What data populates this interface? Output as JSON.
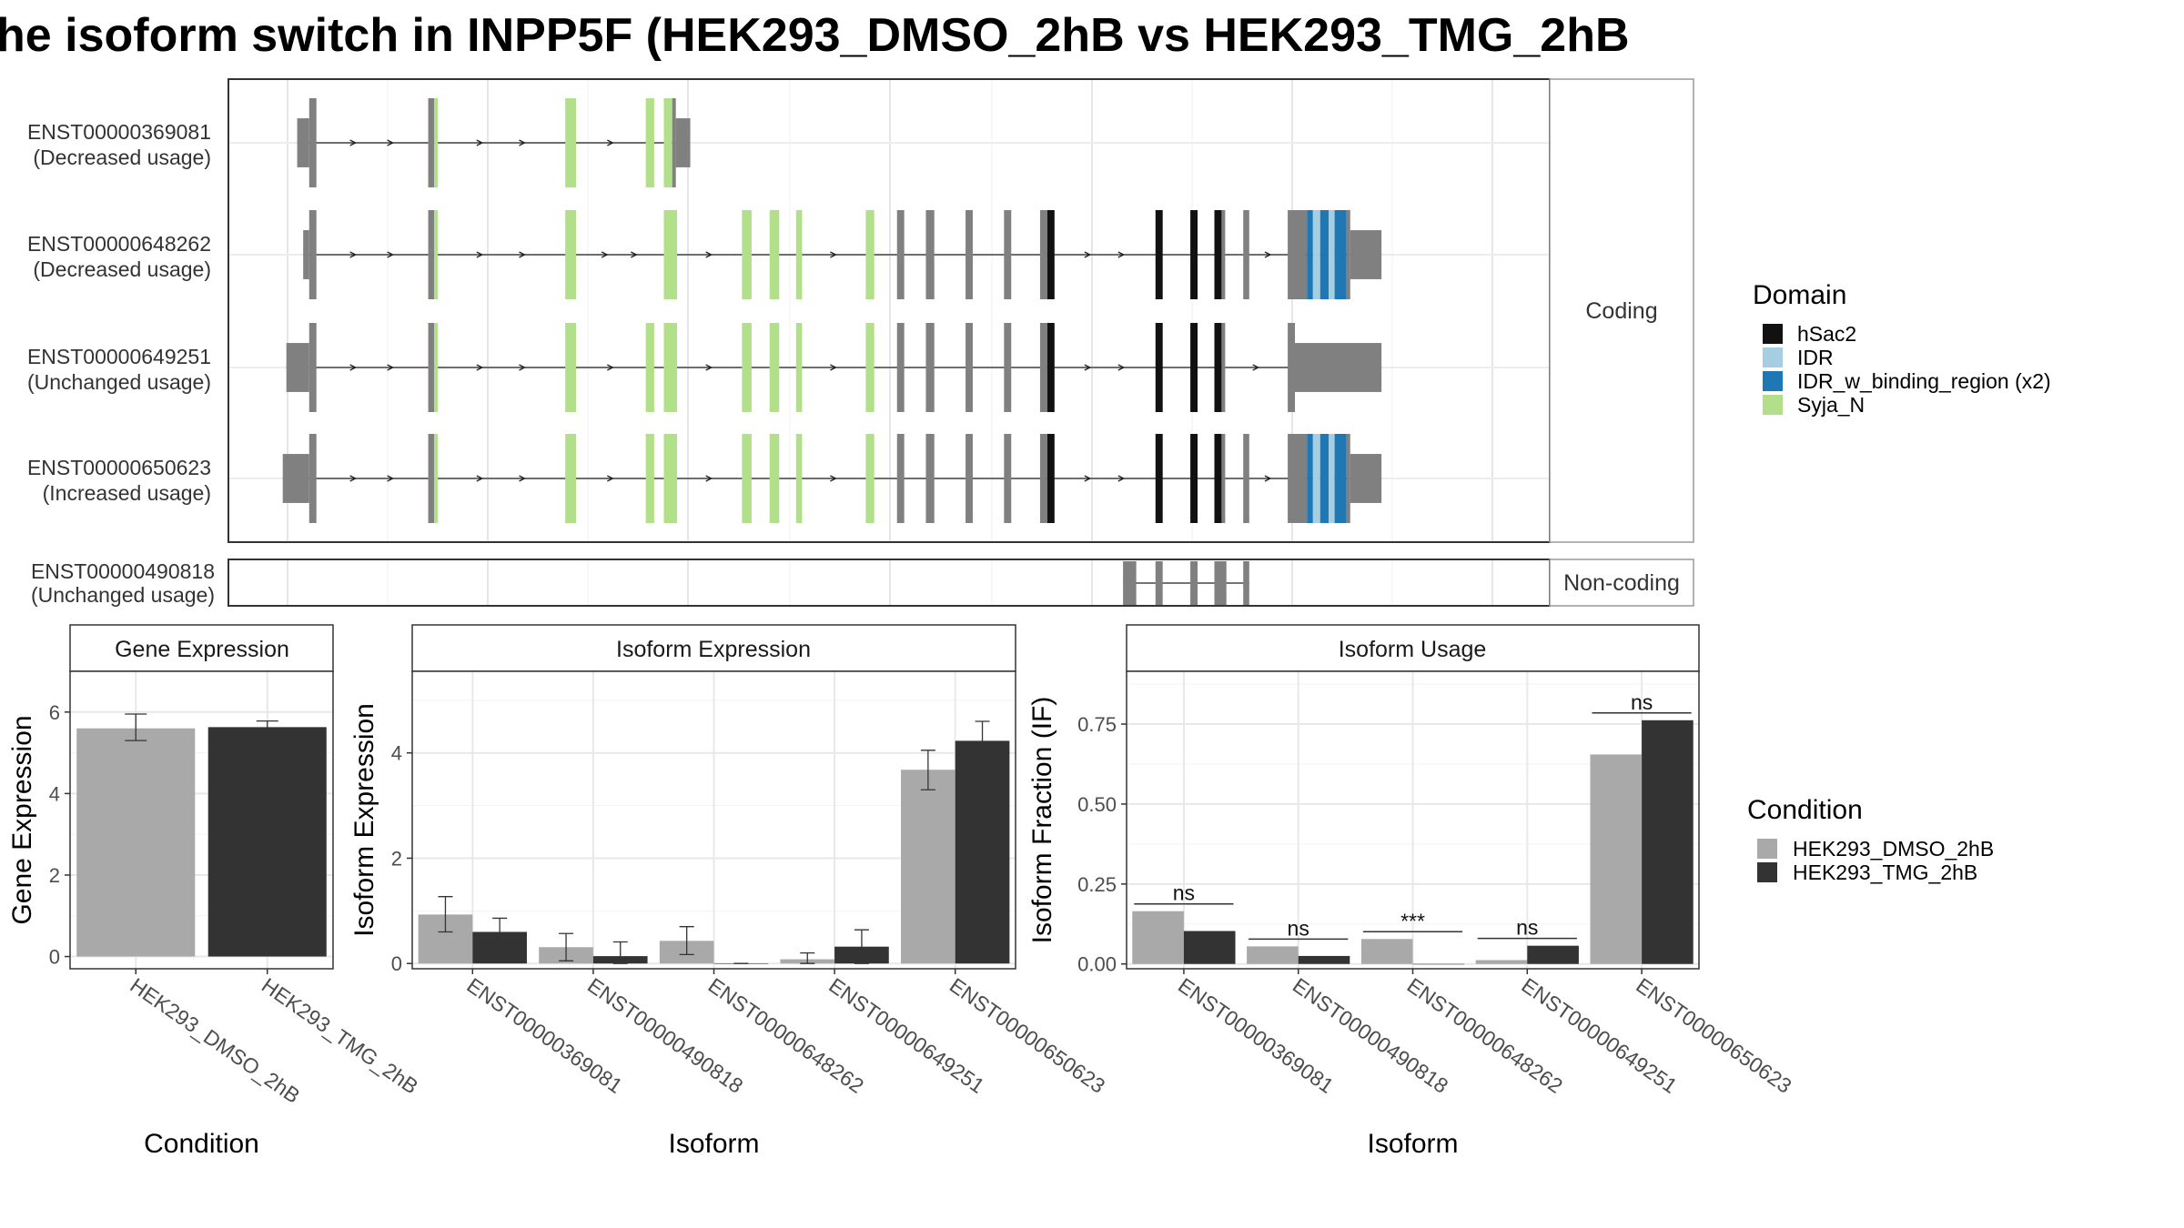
{
  "title": "he isoform switch in INPP5F (HEK293_DMSO_2hB vs HEK293_TMG_2hB",
  "colors": {
    "hSac2": "#111111",
    "IDR": "#a6cee3",
    "IDR_w_binding_region": "#1f78b4",
    "Syja_N": "#b2df8a",
    "exon": "#808080",
    "dmso": "#a9a9a9",
    "tmg": "#333333"
  },
  "structure": {
    "facet_coding": "Coding",
    "facet_noncoding": "Non-coding",
    "genome_range": [
      0,
      1000
    ],
    "coding_isoforms": [
      {
        "id": "ENST00000369081",
        "usage": "(Decreased usage)",
        "span": [
          8,
          335
        ],
        "exons": [
          {
            "s": 8,
            "e": 18,
            "type": "utr"
          },
          {
            "s": 18,
            "e": 24,
            "type": "exon"
          },
          {
            "s": 117,
            "e": 122,
            "type": "exon"
          },
          {
            "s": 122,
            "e": 125,
            "type": "Syja_N"
          },
          {
            "s": 231,
            "e": 240,
            "type": "Syja_N"
          },
          {
            "s": 298,
            "e": 305,
            "type": "Syja_N"
          },
          {
            "s": 313,
            "e": 320,
            "type": "Syja_N"
          },
          {
            "s": 320,
            "e": 323,
            "type": "exon"
          },
          {
            "s": 323,
            "e": 335,
            "type": "utr"
          }
        ]
      },
      {
        "id": "ENST00000648262",
        "usage": "(Decreased usage)",
        "span": [
          13,
          961
        ],
        "exons": [
          {
            "s": 13,
            "e": 18,
            "type": "utr"
          },
          {
            "s": 18,
            "e": 24,
            "type": "exon"
          },
          {
            "s": 117,
            "e": 122,
            "type": "exon"
          },
          {
            "s": 122,
            "e": 125,
            "type": "Syja_N"
          },
          {
            "s": 231,
            "e": 240,
            "type": "Syja_N"
          },
          {
            "s": 313,
            "e": 324,
            "type": "Syja_N"
          },
          {
            "s": 378,
            "e": 386,
            "type": "Syja_N"
          },
          {
            "s": 401,
            "e": 409,
            "type": "Syja_N"
          },
          {
            "s": 423,
            "e": 428,
            "type": "Syja_N"
          },
          {
            "s": 481,
            "e": 488,
            "type": "Syja_N"
          },
          {
            "s": 507,
            "e": 513,
            "type": "exon"
          },
          {
            "s": 531,
            "e": 538,
            "type": "exon"
          },
          {
            "s": 564,
            "e": 570,
            "type": "exon"
          },
          {
            "s": 596,
            "e": 602,
            "type": "exon"
          },
          {
            "s": 626,
            "e": 632,
            "type": "exon"
          },
          {
            "s": 632,
            "e": 638,
            "type": "hSac2"
          },
          {
            "s": 722,
            "e": 728,
            "type": "hSac2"
          },
          {
            "s": 751,
            "e": 757,
            "type": "hSac2"
          },
          {
            "s": 771,
            "e": 777,
            "type": "hSac2"
          },
          {
            "s": 777,
            "e": 780,
            "type": "exon"
          },
          {
            "s": 795,
            "e": 800,
            "type": "exon"
          },
          {
            "s": 832,
            "e": 848,
            "type": "exon"
          },
          {
            "s": 848,
            "e": 853,
            "type": "IDR_w_binding_region"
          },
          {
            "s": 853,
            "e": 859,
            "type": "IDR"
          },
          {
            "s": 859,
            "e": 866,
            "type": "IDR_w_binding_region"
          },
          {
            "s": 866,
            "e": 871,
            "type": "IDR"
          },
          {
            "s": 871,
            "e": 881,
            "type": "IDR_w_binding_region"
          },
          {
            "s": 881,
            "e": 884,
            "type": "exon"
          },
          {
            "s": 884,
            "e": 910,
            "type": "utr"
          }
        ]
      },
      {
        "id": "ENST00000649251",
        "usage": "(Unchanged usage)",
        "span": [
          -1,
          961
        ],
        "exons": [
          {
            "s": -1,
            "e": 18,
            "type": "utr"
          },
          {
            "s": 18,
            "e": 24,
            "type": "exon"
          },
          {
            "s": 117,
            "e": 122,
            "type": "exon"
          },
          {
            "s": 122,
            "e": 125,
            "type": "Syja_N"
          },
          {
            "s": 231,
            "e": 240,
            "type": "Syja_N"
          },
          {
            "s": 298,
            "e": 305,
            "type": "Syja_N"
          },
          {
            "s": 313,
            "e": 324,
            "type": "Syja_N"
          },
          {
            "s": 378,
            "e": 386,
            "type": "Syja_N"
          },
          {
            "s": 401,
            "e": 409,
            "type": "Syja_N"
          },
          {
            "s": 423,
            "e": 428,
            "type": "Syja_N"
          },
          {
            "s": 481,
            "e": 488,
            "type": "Syja_N"
          },
          {
            "s": 507,
            "e": 513,
            "type": "exon"
          },
          {
            "s": 531,
            "e": 538,
            "type": "exon"
          },
          {
            "s": 564,
            "e": 570,
            "type": "exon"
          },
          {
            "s": 596,
            "e": 602,
            "type": "exon"
          },
          {
            "s": 626,
            "e": 632,
            "type": "exon"
          },
          {
            "s": 632,
            "e": 638,
            "type": "hSac2"
          },
          {
            "s": 722,
            "e": 728,
            "type": "hSac2"
          },
          {
            "s": 751,
            "e": 757,
            "type": "hSac2"
          },
          {
            "s": 771,
            "e": 777,
            "type": "hSac2"
          },
          {
            "s": 777,
            "e": 780,
            "type": "exon"
          },
          {
            "s": 832,
            "e": 838,
            "type": "exon"
          },
          {
            "s": 838,
            "e": 910,
            "type": "utr"
          }
        ]
      },
      {
        "id": "ENST00000650623",
        "usage": "(Increased usage)",
        "span": [
          -4,
          961
        ],
        "exons": [
          {
            "s": -4,
            "e": 18,
            "type": "utr"
          },
          {
            "s": 18,
            "e": 24,
            "type": "exon"
          },
          {
            "s": 117,
            "e": 122,
            "type": "exon"
          },
          {
            "s": 122,
            "e": 125,
            "type": "Syja_N"
          },
          {
            "s": 231,
            "e": 240,
            "type": "Syja_N"
          },
          {
            "s": 298,
            "e": 305,
            "type": "Syja_N"
          },
          {
            "s": 313,
            "e": 324,
            "type": "Syja_N"
          },
          {
            "s": 378,
            "e": 386,
            "type": "Syja_N"
          },
          {
            "s": 401,
            "e": 409,
            "type": "Syja_N"
          },
          {
            "s": 423,
            "e": 428,
            "type": "Syja_N"
          },
          {
            "s": 481,
            "e": 488,
            "type": "Syja_N"
          },
          {
            "s": 507,
            "e": 513,
            "type": "exon"
          },
          {
            "s": 531,
            "e": 538,
            "type": "exon"
          },
          {
            "s": 564,
            "e": 570,
            "type": "exon"
          },
          {
            "s": 596,
            "e": 602,
            "type": "exon"
          },
          {
            "s": 626,
            "e": 632,
            "type": "exon"
          },
          {
            "s": 632,
            "e": 638,
            "type": "hSac2"
          },
          {
            "s": 722,
            "e": 728,
            "type": "hSac2"
          },
          {
            "s": 751,
            "e": 757,
            "type": "hSac2"
          },
          {
            "s": 771,
            "e": 777,
            "type": "hSac2"
          },
          {
            "s": 777,
            "e": 780,
            "type": "exon"
          },
          {
            "s": 795,
            "e": 800,
            "type": "exon"
          },
          {
            "s": 832,
            "e": 848,
            "type": "exon"
          },
          {
            "s": 848,
            "e": 853,
            "type": "IDR_w_binding_region"
          },
          {
            "s": 853,
            "e": 859,
            "type": "IDR"
          },
          {
            "s": 859,
            "e": 866,
            "type": "IDR_w_binding_region"
          },
          {
            "s": 866,
            "e": 871,
            "type": "IDR"
          },
          {
            "s": 871,
            "e": 881,
            "type": "IDR_w_binding_region"
          },
          {
            "s": 881,
            "e": 884,
            "type": "exon"
          },
          {
            "s": 884,
            "e": 910,
            "type": "utr"
          }
        ]
      }
    ],
    "noncoding_isoforms": [
      {
        "id": "ENST00000490818",
        "usage": "(Unchanged usage)",
        "span": [
          695,
          800
        ],
        "exons": [
          {
            "s": 695,
            "e": 706,
            "type": "exon"
          },
          {
            "s": 722,
            "e": 728,
            "type": "exon"
          },
          {
            "s": 751,
            "e": 757,
            "type": "exon"
          },
          {
            "s": 771,
            "e": 781,
            "type": "exon"
          },
          {
            "s": 795,
            "e": 800,
            "type": "exon"
          }
        ]
      }
    ],
    "introns_gene_range": [
      -5,
      965
    ]
  },
  "legend_domain": {
    "title": "Domain",
    "items": [
      {
        "label": "hSac2",
        "key": "hSac2"
      },
      {
        "label": "IDR",
        "key": "IDR"
      },
      {
        "label": "IDR_w_binding_region (x2)",
        "key": "IDR_w_binding_region"
      },
      {
        "label": "Syja_N",
        "key": "Syja_N"
      }
    ]
  },
  "legend_condition": {
    "title": "Condition",
    "items": [
      {
        "label": "HEK293_DMSO_2hB",
        "key": "dmso"
      },
      {
        "label": "HEK293_TMG_2hB",
        "key": "tmg"
      }
    ]
  },
  "chart_data": [
    {
      "type": "bar",
      "title": "Gene Expression",
      "xlabel": "Condition",
      "ylabel": "Gene Expression",
      "categories": [
        "HEK293_DMSO_2hB",
        "HEK293_TMG_2hB"
      ],
      "values": [
        5.6,
        5.63
      ],
      "errors": [
        [
          5.3,
          5.95
        ],
        [
          5.5,
          5.78
        ]
      ],
      "ylim": [
        -0.3,
        7.0
      ],
      "yticks": [
        0,
        2,
        4,
        6
      ]
    },
    {
      "type": "bar",
      "title": "Isoform Expression",
      "xlabel": "Isoform",
      "ylabel": "Isoform Expression",
      "categories": [
        "ENST00000369081",
        "ENST00000490818",
        "ENST00000648262",
        "ENST00000649251",
        "ENST00000650623"
      ],
      "series": [
        {
          "name": "HEK293_DMSO_2hB",
          "values": [
            0.93,
            0.31,
            0.43,
            0.08,
            3.68
          ],
          "errors": [
            [
              0.6,
              1.27
            ],
            [
              0.05,
              0.57
            ],
            [
              0.17,
              0.7
            ],
            [
              0.0,
              0.2
            ],
            [
              3.3,
              4.05
            ]
          ]
        },
        {
          "name": "HEK293_TMG_2hB",
          "values": [
            0.6,
            0.14,
            0.0,
            0.32,
            4.23
          ],
          "errors": [
            [
              0.33,
              0.86
            ],
            [
              0.0,
              0.41
            ],
            [
              0.0,
              0.0
            ],
            [
              0.0,
              0.64
            ],
            [
              3.85,
              4.6
            ]
          ]
        }
      ],
      "ylim": [
        -0.1,
        5.55
      ],
      "yticks": [
        0,
        2,
        4
      ]
    },
    {
      "type": "bar",
      "title": "Isoform Usage",
      "xlabel": "Isoform",
      "ylabel": "Isoform Fraction (IF)",
      "categories": [
        "ENST00000369081",
        "ENST00000490818",
        "ENST00000648262",
        "ENST00000649251",
        "ENST00000650623"
      ],
      "series": [
        {
          "name": "HEK293_DMSO_2hB",
          "values": [
            0.165,
            0.055,
            0.078,
            0.012,
            0.655
          ]
        },
        {
          "name": "HEK293_TMG_2hB",
          "values": [
            0.103,
            0.025,
            0.0,
            0.057,
            0.762
          ]
        }
      ],
      "significance": [
        "ns",
        "ns",
        "***",
        "ns",
        "ns"
      ],
      "ylim": [
        -0.015,
        0.915
      ],
      "yticks": [
        0.0,
        0.25,
        0.5,
        0.75
      ],
      "ytick_labels": [
        "0.00",
        "0.25",
        "0.50",
        "0.75"
      ]
    }
  ]
}
